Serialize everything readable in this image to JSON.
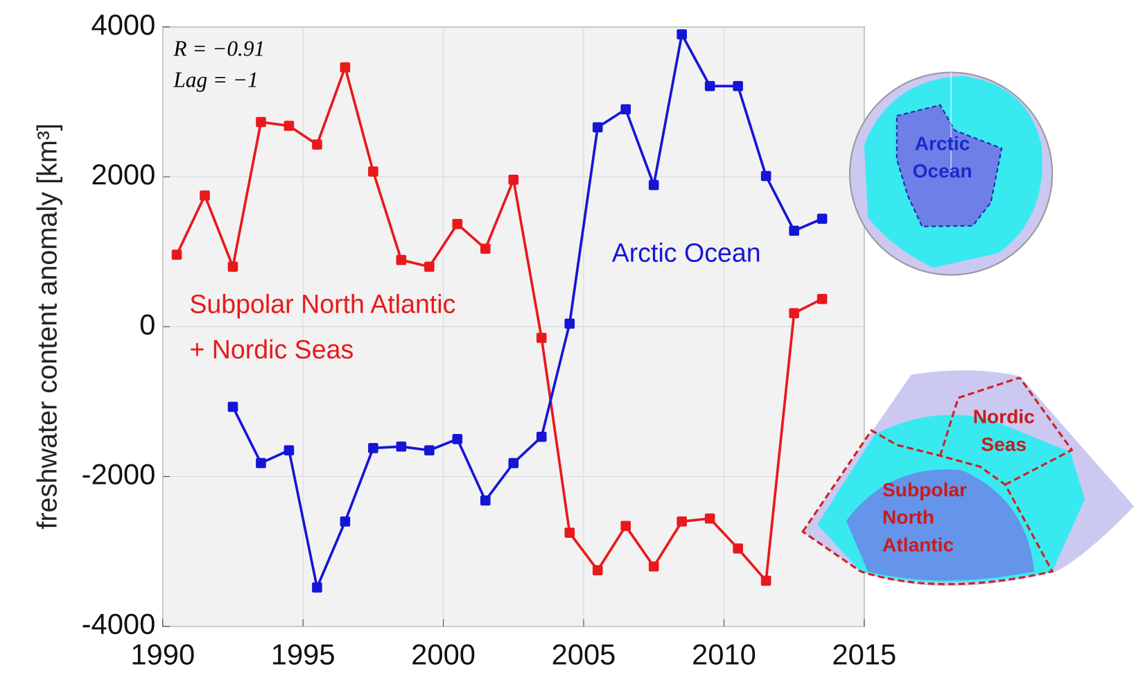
{
  "chart_data": {
    "type": "line",
    "ylabel": "freshwater content anomaly [km³]",
    "annotations": [
      "R = −0.91",
      "Lag = −1"
    ],
    "x": [
      1990.5,
      1991.5,
      1992.5,
      1993.5,
      1994.5,
      1995.5,
      1996.5,
      1997.5,
      1998.5,
      1999.5,
      2000.5,
      2001.5,
      2002.5,
      2003.5,
      2004.5,
      2005.5,
      2006.5,
      2007.5,
      2008.5,
      2009.5,
      2010.5,
      2011.5,
      2012.5,
      2013.5
    ],
    "series": [
      {
        "name": [
          "Subpolar North Atlantic",
          "+ Nordic Seas"
        ],
        "color": "#e8191c",
        "values": [
          960,
          1750,
          800,
          2730,
          2680,
          2430,
          3460,
          2070,
          890,
          800,
          1370,
          1040,
          1960,
          -150,
          -2750,
          -3250,
          -2660,
          -3200,
          -2600,
          -2560,
          -2960,
          -3390,
          180,
          370
        ]
      },
      {
        "name": "Arctic Ocean",
        "color": "#1515d6",
        "values": [
          null,
          null,
          -1070,
          -1820,
          -1650,
          -3480,
          -2600,
          -1620,
          -1600,
          -1650,
          -1500,
          -2320,
          -1820,
          -1470,
          40,
          2660,
          2900,
          1890,
          3900,
          3210,
          3210,
          2010,
          1280,
          1440
        ]
      }
    ],
    "xlim": [
      1990,
      2015
    ],
    "xticks": [
      1990,
      1995,
      2000,
      2005,
      2010,
      2015
    ],
    "ylim": [
      -4000,
      4000
    ],
    "yticks": [
      -4000,
      -2000,
      0,
      2000,
      4000
    ],
    "grid": true
  },
  "insets": {
    "arctic": [
      "Arctic",
      "Ocean"
    ],
    "nordic": [
      "Nordic",
      "Seas"
    ],
    "subpolar": [
      "Subpolar",
      "North",
      "Atlantic"
    ]
  }
}
